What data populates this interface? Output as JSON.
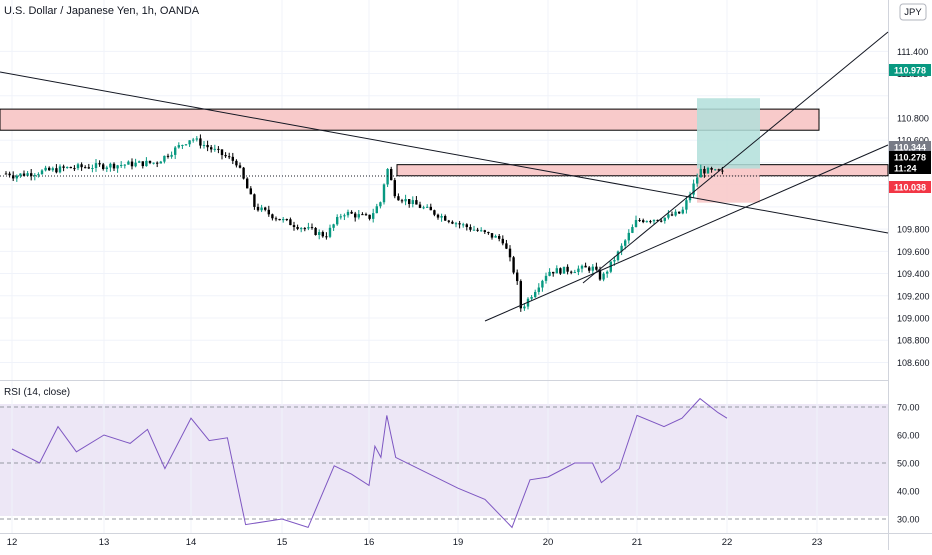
{
  "header": {
    "symbol_title": "U.S. Dollar / Japanese Yen, 1h, OANDA",
    "currency_badge": "JPY"
  },
  "rsi_panel": {
    "label": "RSI (14, close)",
    "ticks": [
      "70.00",
      "60.00",
      "50.00",
      "40.00",
      "30.00"
    ]
  },
  "price_axis": {
    "ticks": [
      "111.400",
      "111.200",
      "110.800",
      "110.600",
      "110.400",
      "109.800",
      "109.600",
      "109.400",
      "109.200",
      "109.000",
      "108.800",
      "108.600"
    ],
    "badges": [
      {
        "text": "110.978",
        "color": "#089981"
      },
      {
        "text": "110.344",
        "color": "#787b86"
      },
      {
        "text": "110.278",
        "color": "#000000"
      },
      {
        "text": "11:24",
        "color": "#000000"
      },
      {
        "text": "110.038",
        "color": "#f23645"
      }
    ]
  },
  "time_axis": {
    "ticks": [
      "12",
      "13",
      "14",
      "15",
      "16",
      "19",
      "20",
      "21",
      "22",
      "23"
    ]
  },
  "colors": {
    "up": "#089981",
    "down": "#000000",
    "rsi_line": "#7e57c2",
    "rsi_band": "#ede7f6",
    "zone_fill": "#f8caca",
    "zone_stroke": "#000000",
    "target_fill": "#b2dfdb",
    "stop_fill": "#f8caca"
  },
  "chart_data": [
    {
      "type": "candlestick",
      "title": "U.S. Dollar / Japanese Yen, 1h, OANDA",
      "ylim": [
        108.5,
        111.5
      ],
      "x": [
        "12",
        "13",
        "14",
        "15",
        "16",
        "19",
        "20",
        "21",
        "22",
        "23"
      ],
      "anchors": [
        {
          "x": "12",
          "close": 110.28
        },
        {
          "x": "12.6",
          "close": 110.35
        },
        {
          "x": "13",
          "close": 110.37
        },
        {
          "x": "13.6",
          "close": 110.4
        },
        {
          "x": "14",
          "close": 110.62
        },
        {
          "x": "14.5",
          "close": 110.4
        },
        {
          "x": "14.7",
          "close": 110.0
        },
        {
          "x": "15",
          "close": 109.88
        },
        {
          "x": "15.5",
          "close": 109.74
        },
        {
          "x": "15.7",
          "close": 109.95
        },
        {
          "x": "16",
          "close": 109.9
        },
        {
          "x": "16.4",
          "close": 110.05
        },
        {
          "x": "16.6",
          "close": 110.36
        },
        {
          "x": "16.9",
          "close": 110.1
        },
        {
          "x": "19",
          "close": 109.85
        },
        {
          "x": "19.5",
          "close": 109.7
        },
        {
          "x": "19.65",
          "close": 109.35
        },
        {
          "x": "19.7",
          "close": 109.08
        },
        {
          "x": "20",
          "close": 109.42
        },
        {
          "x": "20.5",
          "close": 109.45
        },
        {
          "x": "20.6",
          "close": 109.35
        },
        {
          "x": "20.8",
          "close": 109.6
        },
        {
          "x": "21",
          "close": 109.88
        },
        {
          "x": "21.3",
          "close": 109.9
        },
        {
          "x": "21.5",
          "close": 109.95
        },
        {
          "x": "21.7",
          "close": 110.33
        },
        {
          "x": "22",
          "close": 110.3
        }
      ],
      "zones": [
        {
          "from": 110.69,
          "to": 110.88
        },
        {
          "from": 110.28,
          "to": 110.38
        }
      ],
      "position": {
        "entry": 110.344,
        "target": 110.978,
        "stop": 110.038
      }
    },
    {
      "type": "line",
      "title": "RSI (14, close)",
      "ylim": [
        27,
        72
      ],
      "reference_lines": [
        70,
        50,
        30
      ],
      "points": [
        {
          "x": "12",
          "y": 55
        },
        {
          "x": "12.3",
          "y": 50
        },
        {
          "x": "12.5",
          "y": 63
        },
        {
          "x": "12.7",
          "y": 54
        },
        {
          "x": "13",
          "y": 60
        },
        {
          "x": "13.3",
          "y": 57
        },
        {
          "x": "13.5",
          "y": 62
        },
        {
          "x": "13.7",
          "y": 48
        },
        {
          "x": "14",
          "y": 66
        },
        {
          "x": "14.2",
          "y": 58
        },
        {
          "x": "14.4",
          "y": 59
        },
        {
          "x": "14.6",
          "y": 28
        },
        {
          "x": "15",
          "y": 30
        },
        {
          "x": "15.3",
          "y": 27
        },
        {
          "x": "15.6",
          "y": 49
        },
        {
          "x": "15.8",
          "y": 46
        },
        {
          "x": "16",
          "y": 42
        },
        {
          "x": "16.2",
          "y": 56
        },
        {
          "x": "16.4",
          "y": 52
        },
        {
          "x": "16.6",
          "y": 67
        },
        {
          "x": "16.9",
          "y": 52
        },
        {
          "x": "19",
          "y": 41
        },
        {
          "x": "19.3",
          "y": 37
        },
        {
          "x": "19.6",
          "y": 27
        },
        {
          "x": "19.8",
          "y": 44
        },
        {
          "x": "20",
          "y": 45
        },
        {
          "x": "20.3",
          "y": 50
        },
        {
          "x": "20.5",
          "y": 50
        },
        {
          "x": "20.6",
          "y": 43
        },
        {
          "x": "20.8",
          "y": 48
        },
        {
          "x": "21",
          "y": 67
        },
        {
          "x": "21.3",
          "y": 63
        },
        {
          "x": "21.5",
          "y": 66
        },
        {
          "x": "21.7",
          "y": 73
        },
        {
          "x": "21.9",
          "y": 68
        },
        {
          "x": "22",
          "y": 66
        }
      ]
    }
  ]
}
